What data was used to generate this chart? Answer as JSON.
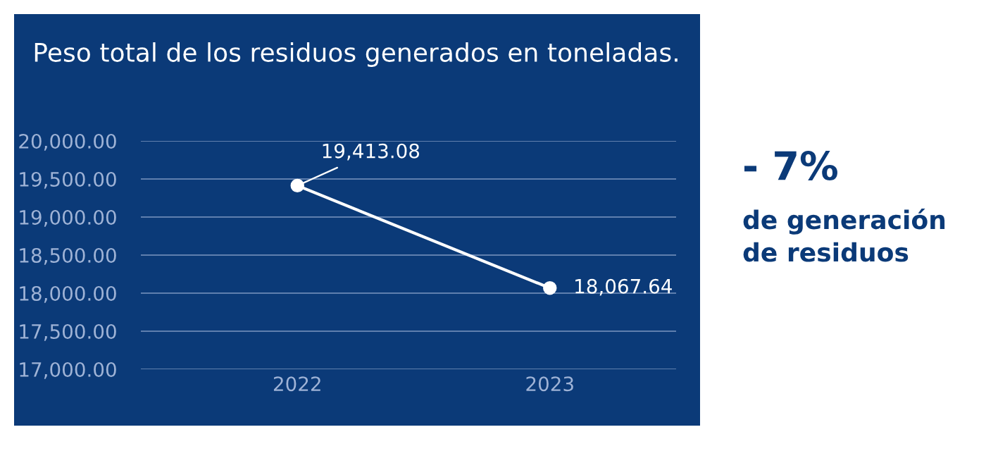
{
  "chart_data": {
    "type": "line",
    "title": "Peso total de los residuos generados en toneladas.",
    "categories": [
      "2022",
      "2023"
    ],
    "series": [
      {
        "color": "#ffffff",
        "values": [
          19413.08,
          18067.64
        ],
        "value_labels": [
          "19,413.08",
          "18,067.64"
        ]
      }
    ],
    "ylim": [
      17000,
      20000
    ],
    "yticks": [
      {
        "value": 17000,
        "label": "17,000.00"
      },
      {
        "value": 17500,
        "label": "17,500.00"
      },
      {
        "value": 18000,
        "label": "18,000.00"
      },
      {
        "value": 18500,
        "label": "18,500.00"
      },
      {
        "value": 19000,
        "label": "19,000.00"
      },
      {
        "value": 19500,
        "label": "19,500.00"
      },
      {
        "value": 20000,
        "label": "20,000.00"
      }
    ],
    "grid": "y",
    "marker": "circle",
    "line_style": "solid",
    "legend": false,
    "annotations": [
      "- 7%",
      "de generación\nde residuos"
    ]
  }
}
